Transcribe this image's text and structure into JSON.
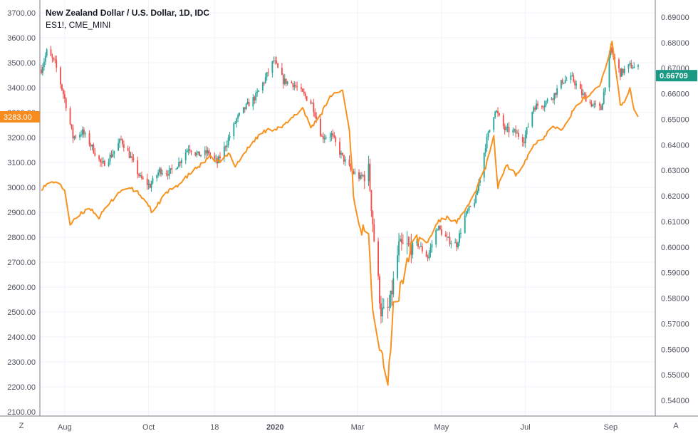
{
  "legend": {
    "title": "New Zealand Dollar / U.S. Dollar, 1D, IDC",
    "secondary": "ES1!, CME_MINI"
  },
  "buttons": {
    "left": "Z",
    "right": "A"
  },
  "colors": {
    "up": "#26a69a",
    "down": "#ef5350",
    "line": "#f7931e",
    "grid": "#f0f3fa",
    "axis": "#50535e",
    "label_green": "#1a9985",
    "label_orange": "#f68c1e"
  },
  "chart_data": {
    "type": "candlestick+line",
    "series": [
      {
        "name": "New Zealand Dollar / U.S. Dollar, 1D, IDC",
        "kind": "candlestick",
        "axis": "right",
        "last_value": 0.66709
      },
      {
        "name": "ES1!, CME_MINI",
        "kind": "line",
        "axis": "left",
        "last_value": 3283.0
      }
    ],
    "left_axis": {
      "ticks": [
        "3700.00",
        "3600.00",
        "3500.00",
        "3400.00",
        "3300.00",
        "3200.00",
        "3100.00",
        "3000.00",
        "2900.00",
        "2800.00",
        "2700.00",
        "2600.00",
        "2500.00",
        "2400.00",
        "2300.00",
        "2200.00",
        "2100.00"
      ],
      "range": [
        2100,
        3700
      ]
    },
    "right_axis": {
      "ticks": [
        "0.69000",
        "0.68000",
        "0.67000",
        "0.66000",
        "0.65000",
        "0.64000",
        "0.63000",
        "0.62000",
        "0.61000",
        "0.60000",
        "0.59000",
        "0.58000",
        "0.57000",
        "0.56000",
        "0.55000",
        "0.54000"
      ],
      "range": [
        0.535,
        0.6935
      ]
    },
    "x_axis": {
      "ticks": [
        "Aug",
        "Oct",
        "18",
        "2020",
        "Mar",
        "May",
        "Jul",
        "Sep"
      ]
    },
    "price_labels": {
      "right": "0.66709",
      "left": "3283.00"
    },
    "nzdusd_path": [
      [
        "2019-07-15",
        0.6695
      ],
      [
        "2019-07-19",
        0.6765
      ],
      [
        "2019-07-25",
        0.672
      ],
      [
        "2019-08-01",
        0.658
      ],
      [
        "2019-08-07",
        0.643
      ],
      [
        "2019-08-14",
        0.645
      ],
      [
        "2019-08-21",
        0.639
      ],
      [
        "2019-08-28",
        0.632
      ],
      [
        "2019-09-04",
        0.636
      ],
      [
        "2019-09-11",
        0.642
      ],
      [
        "2019-09-18",
        0.635
      ],
      [
        "2019-09-25",
        0.627
      ],
      [
        "2019-10-02",
        0.624
      ],
      [
        "2019-10-09",
        0.63
      ],
      [
        "2019-10-16",
        0.629
      ],
      [
        "2019-10-23",
        0.633
      ],
      [
        "2019-10-30",
        0.639
      ],
      [
        "2019-11-06",
        0.636
      ],
      [
        "2019-11-13",
        0.637
      ],
      [
        "2019-11-20",
        0.633
      ],
      [
        "2019-11-27",
        0.641
      ],
      [
        "2019-12-04",
        0.65
      ],
      [
        "2019-12-11",
        0.655
      ],
      [
        "2019-12-18",
        0.659
      ],
      [
        "2019-12-24",
        0.665
      ],
      [
        "2019-12-31",
        0.673
      ],
      [
        "2020-01-07",
        0.665
      ],
      [
        "2020-01-14",
        0.664
      ],
      [
        "2020-01-21",
        0.66
      ],
      [
        "2020-01-28",
        0.656
      ],
      [
        "2020-02-04",
        0.643
      ],
      [
        "2020-02-11",
        0.644
      ],
      [
        "2020-02-18",
        0.636
      ],
      [
        "2020-02-25",
        0.63
      ],
      [
        "2020-03-03",
        0.627
      ],
      [
        "2020-03-09",
        0.63
      ],
      [
        "2020-03-13",
        0.603
      ],
      [
        "2020-03-18",
        0.575
      ],
      [
        "2020-03-20",
        0.574
      ],
      [
        "2020-03-24",
        0.576
      ],
      [
        "2020-03-31",
        0.6
      ],
      [
        "2020-04-07",
        0.6
      ],
      [
        "2020-04-14",
        0.601
      ],
      [
        "2020-04-21",
        0.596
      ],
      [
        "2020-04-28",
        0.608
      ],
      [
        "2020-05-05",
        0.603
      ],
      [
        "2020-05-12",
        0.601
      ],
      [
        "2020-05-18",
        0.612
      ],
      [
        "2020-05-26",
        0.619
      ],
      [
        "2020-06-02",
        0.64
      ],
      [
        "2020-06-09",
        0.654
      ],
      [
        "2020-06-16",
        0.646
      ],
      [
        "2020-06-23",
        0.645
      ],
      [
        "2020-06-30",
        0.642
      ],
      [
        "2020-07-07",
        0.655
      ],
      [
        "2020-07-14",
        0.656
      ],
      [
        "2020-07-21",
        0.659
      ],
      [
        "2020-07-28",
        0.665
      ],
      [
        "2020-08-04",
        0.666
      ],
      [
        "2020-08-11",
        0.66
      ],
      [
        "2020-08-18",
        0.656
      ],
      [
        "2020-08-25",
        0.654
      ],
      [
        "2020-09-01",
        0.677
      ],
      [
        "2020-09-08",
        0.668
      ],
      [
        "2020-09-15",
        0.671
      ],
      [
        "2020-09-20",
        0.67
      ]
    ],
    "es_path": [
      [
        "2019-07-15",
        2995
      ],
      [
        "2019-07-19",
        3010
      ],
      [
        "2019-07-25",
        3025
      ],
      [
        "2019-08-01",
        2990
      ],
      [
        "2019-08-05",
        2850
      ],
      [
        "2019-08-12",
        2890
      ],
      [
        "2019-08-19",
        2920
      ],
      [
        "2019-08-26",
        2880
      ],
      [
        "2019-09-02",
        2930
      ],
      [
        "2019-09-09",
        2980
      ],
      [
        "2019-09-16",
        3000
      ],
      [
        "2019-09-23",
        2980
      ],
      [
        "2019-10-01",
        2930
      ],
      [
        "2019-10-04",
        2895
      ],
      [
        "2019-10-11",
        2960
      ],
      [
        "2019-10-18",
        2995
      ],
      [
        "2019-10-25",
        3020
      ],
      [
        "2019-11-01",
        3060
      ],
      [
        "2019-11-08",
        3090
      ],
      [
        "2019-11-15",
        3120
      ],
      [
        "2019-11-22",
        3100
      ],
      [
        "2019-11-29",
        3140
      ],
      [
        "2019-12-03",
        3085
      ],
      [
        "2019-12-10",
        3140
      ],
      [
        "2019-12-17",
        3190
      ],
      [
        "2019-12-24",
        3225
      ],
      [
        "2019-12-31",
        3235
      ],
      [
        "2020-01-07",
        3245
      ],
      [
        "2020-01-14",
        3280
      ],
      [
        "2020-01-21",
        3320
      ],
      [
        "2020-01-27",
        3240
      ],
      [
        "2020-02-04",
        3300
      ],
      [
        "2020-02-11",
        3370
      ],
      [
        "2020-02-19",
        3390
      ],
      [
        "2020-02-24",
        3230
      ],
      [
        "2020-02-28",
        2910
      ],
      [
        "2020-03-04",
        2840
      ],
      [
        "2020-03-09",
        2780
      ],
      [
        "2020-03-12",
        2540
      ],
      [
        "2020-03-16",
        2400
      ],
      [
        "2020-03-20",
        2310
      ],
      [
        "2020-03-23",
        2200
      ],
      [
        "2020-03-27",
        2540
      ],
      [
        "2020-03-31",
        2560
      ],
      [
        "2020-04-07",
        2730
      ],
      [
        "2020-04-14",
        2800
      ],
      [
        "2020-04-21",
        2780
      ],
      [
        "2020-04-28",
        2860
      ],
      [
        "2020-05-05",
        2880
      ],
      [
        "2020-05-12",
        2860
      ],
      [
        "2020-05-19",
        2910
      ],
      [
        "2020-05-26",
        2990
      ],
      [
        "2020-06-02",
        3080
      ],
      [
        "2020-06-08",
        3200
      ],
      [
        "2020-06-11",
        3000
      ],
      [
        "2020-06-17",
        3090
      ],
      [
        "2020-06-24",
        3050
      ],
      [
        "2020-06-30",
        3100
      ],
      [
        "2020-07-07",
        3170
      ],
      [
        "2020-07-14",
        3200
      ],
      [
        "2020-07-21",
        3250
      ],
      [
        "2020-07-28",
        3230
      ],
      [
        "2020-08-04",
        3300
      ],
      [
        "2020-08-11",
        3350
      ],
      [
        "2020-08-18",
        3380
      ],
      [
        "2020-08-25",
        3420
      ],
      [
        "2020-09-02",
        3580
      ],
      [
        "2020-09-08",
        3330
      ],
      [
        "2020-09-11",
        3340
      ],
      [
        "2020-09-15",
        3400
      ],
      [
        "2020-09-18",
        3310
      ],
      [
        "2020-09-21",
        3283
      ]
    ]
  }
}
